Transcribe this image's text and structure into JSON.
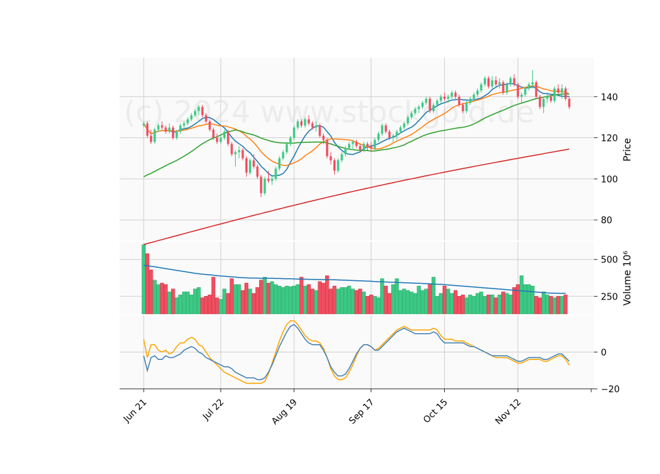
{
  "watermark": "(c) 2024 www.stockgold.de",
  "chart_data": {
    "type": "candlestick",
    "x_tick_labels": [
      "Jun 21",
      "Jul 22",
      "Aug 19",
      "Sep 17",
      "Oct 15",
      "Nov 12"
    ],
    "x_tick_indices": [
      0,
      21,
      41,
      62,
      82,
      102
    ],
    "colors": {
      "up": "#3dc985",
      "down": "#ef4f60",
      "bg": "#fafafa",
      "grid": "#d0d0d0",
      "ma_blue": "#1f77b4",
      "ma_orange": "#ff7f0e",
      "ma_green": "#2ca02c",
      "ma_red": "#d62728",
      "osc_blue": "#4682b4",
      "osc_orange": "#ffa500",
      "vol_ma": "#1f77b4"
    },
    "price_panel": {
      "ylabel": "Price",
      "ylim": [
        70,
        159
      ],
      "yticks": [
        80,
        100,
        120,
        140
      ],
      "candles": [
        [
          126,
          128,
          125,
          127
        ],
        [
          127,
          128,
          120,
          121
        ],
        [
          121,
          124,
          117,
          118
        ],
        [
          118,
          125,
          117,
          124
        ],
        [
          124,
          127,
          123,
          126
        ],
        [
          126,
          128,
          124,
          125
        ],
        [
          125,
          126,
          122,
          123
        ],
        [
          123,
          127,
          122,
          125
        ],
        [
          125,
          126,
          119,
          120
        ],
        [
          120,
          124,
          119,
          123
        ],
        [
          123,
          127,
          122,
          126
        ],
        [
          126,
          128,
          124,
          127
        ],
        [
          127,
          130,
          126,
          129
        ],
        [
          129,
          132,
          128,
          131
        ],
        [
          131,
          134,
          130,
          133
        ],
        [
          133,
          136,
          131,
          135
        ],
        [
          135,
          136,
          130,
          131
        ],
        [
          131,
          132,
          127,
          128
        ],
        [
          128,
          129,
          123,
          124
        ],
        [
          124,
          125,
          119,
          120
        ],
        [
          120,
          122,
          117,
          118
        ],
        [
          118,
          121,
          117,
          120
        ],
        [
          120,
          124,
          119,
          123
        ],
        [
          123,
          124,
          116,
          117
        ],
        [
          117,
          118,
          111,
          112
        ],
        [
          112,
          114,
          106,
          113
        ],
        [
          113,
          116,
          110,
          114
        ],
        [
          114,
          115,
          109,
          110
        ],
        [
          110,
          111,
          101,
          103
        ],
        [
          103,
          110,
          102,
          109
        ],
        [
          109,
          112,
          105,
          106
        ],
        [
          106,
          107,
          100,
          101
        ],
        [
          101,
          102,
          91,
          93
        ],
        [
          93,
          101,
          92,
          100
        ],
        [
          100,
          104,
          98,
          99
        ],
        [
          99,
          102,
          97,
          100
        ],
        [
          100,
          106,
          99,
          105
        ],
        [
          105,
          111,
          104,
          110
        ],
        [
          110,
          114,
          109,
          113
        ],
        [
          113,
          118,
          112,
          117
        ],
        [
          117,
          121,
          116,
          120
        ],
        [
          120,
          126,
          119,
          125
        ],
        [
          125,
          129,
          124,
          128
        ],
        [
          128,
          129,
          125,
          126
        ],
        [
          126,
          130,
          125,
          129
        ],
        [
          129,
          131,
          126,
          127
        ],
        [
          127,
          128,
          124,
          125
        ],
        [
          125,
          128,
          123,
          126
        ],
        [
          126,
          127,
          120,
          121
        ],
        [
          121,
          122,
          117,
          119
        ],
        [
          119,
          120,
          110,
          111
        ],
        [
          111,
          113,
          107,
          109
        ],
        [
          109,
          110,
          102,
          104
        ],
        [
          104,
          110,
          103,
          109
        ],
        [
          109,
          113,
          108,
          112
        ],
        [
          112,
          116,
          111,
          115
        ],
        [
          115,
          118,
          114,
          117
        ],
        [
          117,
          119,
          114,
          118
        ],
        [
          118,
          119,
          115,
          116
        ],
        [
          116,
          117,
          113,
          114
        ],
        [
          114,
          118,
          113,
          117
        ],
        [
          117,
          118,
          114,
          116
        ],
        [
          116,
          118,
          113,
          115
        ],
        [
          115,
          120,
          114,
          119
        ],
        [
          119,
          123,
          118,
          122
        ],
        [
          122,
          127,
          121,
          126
        ],
        [
          126,
          127,
          122,
          123
        ],
        [
          123,
          124,
          119,
          120
        ],
        [
          120,
          122,
          118,
          121
        ],
        [
          121,
          124,
          119,
          123
        ],
        [
          123,
          126,
          122,
          125
        ],
        [
          125,
          128,
          124,
          127
        ],
        [
          127,
          131,
          126,
          130
        ],
        [
          130,
          133,
          129,
          132
        ],
        [
          132,
          135,
          131,
          134
        ],
        [
          134,
          136,
          132,
          135
        ],
        [
          135,
          138,
          134,
          137
        ],
        [
          137,
          140,
          136,
          139
        ],
        [
          139,
          140,
          132,
          133
        ],
        [
          133,
          137,
          132,
          136
        ],
        [
          136,
          139,
          135,
          138
        ],
        [
          138,
          141,
          137,
          140
        ],
        [
          140,
          142,
          138,
          139
        ],
        [
          139,
          141,
          137,
          140
        ],
        [
          140,
          143,
          139,
          142
        ],
        [
          142,
          143,
          139,
          140
        ],
        [
          140,
          141,
          135,
          136
        ],
        [
          136,
          137,
          132,
          133
        ],
        [
          133,
          138,
          132,
          137
        ],
        [
          137,
          140,
          136,
          139
        ],
        [
          139,
          142,
          138,
          141
        ],
        [
          141,
          144,
          140,
          143
        ],
        [
          143,
          147,
          142,
          146
        ],
        [
          146,
          150,
          145,
          149
        ],
        [
          149,
          150,
          144,
          145
        ],
        [
          145,
          150,
          144,
          148
        ],
        [
          148,
          150,
          145,
          146
        ],
        [
          146,
          149,
          144,
          147
        ],
        [
          147,
          148,
          141,
          142
        ],
        [
          142,
          147,
          141,
          146
        ],
        [
          146,
          150,
          145,
          149
        ],
        [
          149,
          151,
          145,
          146
        ],
        [
          146,
          147,
          139,
          140
        ],
        [
          140,
          142,
          137,
          141
        ],
        [
          141,
          145,
          140,
          144
        ],
        [
          144,
          147,
          143,
          146
        ],
        [
          146,
          153,
          144,
          147
        ],
        [
          147,
          148,
          139,
          140
        ],
        [
          140,
          141,
          134,
          135
        ],
        [
          135,
          140,
          132,
          139
        ],
        [
          139,
          142,
          137,
          140
        ],
        [
          140,
          141,
          137,
          138
        ],
        [
          138,
          145,
          137,
          144
        ],
        [
          144,
          146,
          141,
          142
        ],
        [
          142,
          146,
          139,
          144
        ],
        [
          144,
          145,
          138,
          139
        ],
        [
          139,
          140,
          134,
          135
        ]
      ]
    },
    "volume_panel": {
      "ylabel": "Volume  10⁶",
      "ylim": [
        130,
        620
      ],
      "yticks": [
        250,
        500
      ],
      "volumes": [
        600,
        540,
        430,
        360,
        330,
        340,
        330,
        280,
        300,
        240,
        260,
        280,
        280,
        260,
        300,
        310,
        240,
        250,
        260,
        380,
        240,
        230,
        300,
        270,
        370,
        330,
        330,
        290,
        340,
        300,
        270,
        310,
        360,
        380,
        340,
        350,
        330,
        320,
        310,
        320,
        315,
        320,
        330,
        380,
        320,
        330,
        300,
        290,
        350,
        340,
        390,
        300,
        320,
        300,
        310,
        310,
        320,
        300,
        290,
        300,
        280,
        250,
        260,
        250,
        240,
        370,
        320,
        270,
        330,
        370,
        290,
        300,
        290,
        280,
        270,
        320,
        290,
        300,
        330,
        380,
        250,
        270,
        320,
        300,
        270,
        290,
        250,
        260,
        240,
        260,
        250,
        270,
        280,
        250,
        260,
        260,
        240,
        260,
        280,
        270,
        260,
        310,
        330,
        390,
        330,
        330,
        320,
        250,
        240,
        280,
        260,
        250,
        240,
        250,
        250,
        260
      ],
      "ma": [
        460,
        458,
        454,
        450,
        446,
        442,
        438,
        434,
        430,
        426,
        422,
        418,
        414,
        410,
        406,
        403,
        400,
        398,
        396,
        393,
        390,
        388,
        386,
        384,
        382,
        380,
        378,
        376,
        375,
        374,
        374,
        373,
        372,
        372,
        372,
        372,
        371,
        371,
        370,
        369,
        369,
        368,
        367,
        366,
        366,
        365,
        365,
        364,
        364,
        363,
        363,
        362,
        362,
        361,
        360,
        359,
        358,
        357,
        356,
        355,
        354,
        353,
        352,
        350,
        349,
        348,
        347,
        346,
        345,
        344,
        343,
        342,
        341,
        340,
        339,
        338,
        337,
        336,
        335,
        333,
        332,
        331,
        329,
        327,
        325,
        323,
        321,
        319,
        317,
        315,
        313,
        311,
        309,
        307,
        305,
        303,
        301,
        299,
        297,
        295,
        293,
        291,
        289,
        287,
        285,
        283,
        281,
        279,
        277,
        275,
        273,
        272,
        271,
        270,
        270,
        270
      ]
    },
    "oscillator_panel": {
      "ylim": [
        -20,
        20
      ],
      "yticks": [
        -20,
        0
      ],
      "line1": [
        -2,
        -10,
        -3,
        -2,
        -4,
        -4,
        -2,
        -3,
        -3,
        -2,
        -1,
        1,
        2,
        3,
        2,
        0,
        -1,
        -3,
        -4,
        -5,
        -6,
        -7,
        -8,
        -8,
        -9,
        -11,
        -12,
        -13,
        -14,
        -14,
        -14,
        -15,
        -15,
        -14,
        -11,
        -7,
        -2,
        3,
        7,
        11,
        14,
        15,
        13,
        10,
        7,
        5,
        4,
        4,
        4,
        1,
        -3,
        -8,
        -11,
        -13,
        -13,
        -12,
        -9,
        -5,
        -1,
        2,
        4,
        4,
        3,
        1,
        1,
        3,
        5,
        7,
        9,
        11,
        12,
        13,
        12,
        11,
        10,
        10,
        10,
        10,
        10,
        11,
        10,
        7,
        5,
        5,
        5,
        5,
        5,
        5,
        4,
        3,
        3,
        2,
        1,
        0,
        -1,
        -2,
        -2,
        -2,
        -2,
        -2,
        -3,
        -4,
        -5,
        -5,
        -4,
        -3,
        -3,
        -3,
        -3,
        -4,
        -4,
        -3,
        -2,
        -1,
        -1,
        -3,
        -5
      ],
      "line2": [
        7,
        -3,
        4,
        4,
        1,
        0,
        1,
        -1,
        0,
        3,
        5,
        5,
        7,
        8,
        7,
        4,
        3,
        0,
        -3,
        -5,
        -7,
        -9,
        -11,
        -12,
        -13,
        -14,
        -15,
        -16,
        -17,
        -17,
        -17,
        -17,
        -17,
        -16,
        -12,
        -6,
        0,
        6,
        11,
        15,
        17,
        17,
        15,
        12,
        9,
        7,
        6,
        6,
        5,
        2,
        -3,
        -9,
        -13,
        -15,
        -15,
        -14,
        -11,
        -7,
        -2,
        2,
        4,
        4,
        3,
        1,
        2,
        4,
        6,
        8,
        10,
        12,
        13,
        14,
        13,
        12,
        12,
        12,
        12,
        12,
        12,
        13,
        12,
        9,
        7,
        7,
        7,
        6,
        6,
        6,
        5,
        4,
        3,
        2,
        1,
        0,
        -1,
        -2,
        -3,
        -3,
        -3,
        -3,
        -4,
        -5,
        -6,
        -6,
        -5,
        -4,
        -4,
        -4,
        -4,
        -5,
        -5,
        -4,
        -3,
        -2,
        -2,
        -4,
        -7
      ]
    }
  }
}
